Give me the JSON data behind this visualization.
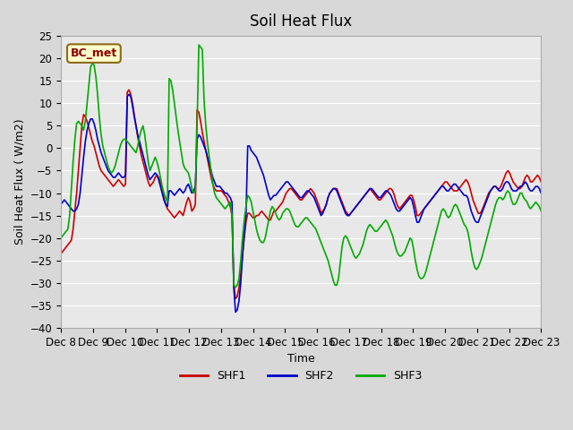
{
  "title": "Soil Heat Flux",
  "xlabel": "Time",
  "ylabel": "Soil Heat Flux ( W/m2)",
  "ylim": [
    -40,
    25
  ],
  "yticks": [
    -40,
    -35,
    -30,
    -25,
    -20,
    -15,
    -10,
    -5,
    0,
    5,
    10,
    15,
    20,
    25
  ],
  "bg_color": "#e8e8e8",
  "plot_bg_color": "#e8e8e8",
  "annotation_label": "BC_met",
  "line_colors": {
    "SHF1": "#cc0000",
    "SHF2": "#0000cc",
    "SHF3": "#00aa00"
  },
  "x_start": 8.0,
  "x_end": 23.0,
  "xtick_labels": [
    "Dec 8",
    "Dec 9",
    "Dec 10",
    "Dec 11",
    "Dec 12",
    "Dec 13",
    "Dec 14",
    "Dec 15",
    "Dec 16",
    "Dec 17",
    "Dec 18",
    "Dec 19",
    "Dec 20",
    "Dec 21",
    "Dec 22",
    "Dec 23"
  ],
  "xtick_positions": [
    8,
    9,
    10,
    11,
    12,
    13,
    14,
    15,
    16,
    17,
    18,
    19,
    20,
    21,
    22,
    23
  ],
  "SHF1": [
    -23.5,
    -23.0,
    -22.5,
    -22.0,
    -21.5,
    -21.0,
    -20.5,
    -18.0,
    -14.0,
    -10.0,
    -5.0,
    0.0,
    5.0,
    7.5,
    7.0,
    6.0,
    4.5,
    3.0,
    1.5,
    0.5,
    -1.0,
    -2.5,
    -4.0,
    -5.0,
    -5.5,
    -6.0,
    -6.5,
    -7.0,
    -7.5,
    -8.0,
    -8.5,
    -8.0,
    -7.5,
    -7.0,
    -7.5,
    -8.0,
    -8.5,
    -8.0,
    12.5,
    13.0,
    12.0,
    10.0,
    7.5,
    5.0,
    2.5,
    0.5,
    -1.5,
    -3.0,
    -4.5,
    -6.0,
    -7.5,
    -8.5,
    -8.0,
    -7.5,
    -6.5,
    -6.0,
    -6.5,
    -7.5,
    -9.0,
    -11.0,
    -12.5,
    -13.5,
    -14.0,
    -14.5,
    -15.0,
    -15.5,
    -15.0,
    -14.5,
    -14.0,
    -14.5,
    -15.0,
    -13.5,
    -12.0,
    -11.0,
    -12.0,
    -14.0,
    -13.5,
    -12.5,
    8.5,
    8.0,
    6.0,
    3.5,
    1.5,
    -0.5,
    -2.5,
    -4.5,
    -6.5,
    -8.0,
    -9.0,
    -9.5,
    -9.5,
    -9.5,
    -9.5,
    -10.0,
    -10.5,
    -11.0,
    -12.0,
    -13.0,
    -15.0,
    -30.0,
    -33.5,
    -33.0,
    -31.0,
    -28.0,
    -24.0,
    -20.0,
    -16.5,
    -14.5,
    -14.5,
    -15.0,
    -15.5,
    -15.5,
    -15.0,
    -15.0,
    -14.5,
    -14.0,
    -14.5,
    -15.0,
    -15.5,
    -16.0,
    -16.0,
    -15.0,
    -14.0,
    -14.0,
    -13.5,
    -13.0,
    -12.5,
    -12.0,
    -11.0,
    -10.0,
    -9.5,
    -9.0,
    -9.0,
    -9.5,
    -10.0,
    -10.5,
    -11.0,
    -11.5,
    -11.5,
    -11.0,
    -10.5,
    -10.0,
    -9.5,
    -9.0,
    -9.5,
    -10.0,
    -11.0,
    -12.0,
    -13.0,
    -14.5,
    -14.0,
    -13.5,
    -12.5,
    -11.0,
    -10.0,
    -9.5,
    -9.0,
    -9.0,
    -9.0,
    -10.0,
    -11.0,
    -12.0,
    -13.0,
    -14.0,
    -14.5,
    -15.0,
    -14.5,
    -14.0,
    -13.5,
    -13.0,
    -12.5,
    -12.0,
    -11.5,
    -11.0,
    -10.5,
    -10.0,
    -9.5,
    -9.0,
    -9.5,
    -10.0,
    -10.5,
    -11.0,
    -11.5,
    -11.5,
    -11.0,
    -10.5,
    -10.0,
    -9.5,
    -9.0,
    -9.0,
    -9.5,
    -10.5,
    -12.0,
    -13.0,
    -13.5,
    -13.0,
    -12.5,
    -12.0,
    -11.5,
    -11.0,
    -10.5,
    -10.5,
    -11.5,
    -13.0,
    -15.0,
    -15.0,
    -14.5,
    -14.0,
    -13.5,
    -13.0,
    -12.5,
    -12.0,
    -11.5,
    -11.0,
    -10.5,
    -10.0,
    -9.5,
    -9.0,
    -8.5,
    -8.0,
    -7.5,
    -7.5,
    -8.0,
    -8.5,
    -9.0,
    -9.5,
    -9.5,
    -9.5,
    -9.0,
    -8.5,
    -8.0,
    -7.5,
    -7.0,
    -7.5,
    -8.5,
    -10.0,
    -11.5,
    -12.5,
    -13.5,
    -14.5,
    -14.5,
    -14.0,
    -13.0,
    -12.0,
    -11.0,
    -10.0,
    -9.5,
    -9.0,
    -8.5,
    -8.5,
    -9.0,
    -9.0,
    -8.5,
    -7.5,
    -6.5,
    -5.5,
    -5.0,
    -5.5,
    -6.5,
    -7.5,
    -8.0,
    -8.5,
    -9.0,
    -9.0,
    -8.5,
    -7.5,
    -6.5,
    -6.0,
    -6.5,
    -7.5,
    -7.5,
    -7.0,
    -6.5,
    -6.0,
    -6.5,
    -7.5
  ],
  "SHF2": [
    -12.5,
    -12.0,
    -11.5,
    -12.0,
    -12.5,
    -13.0,
    -13.5,
    -14.0,
    -14.0,
    -13.5,
    -12.5,
    -10.0,
    -6.0,
    -2.0,
    1.5,
    4.0,
    5.5,
    6.5,
    6.5,
    5.5,
    4.0,
    2.0,
    0.5,
    -1.0,
    -2.0,
    -3.0,
    -4.0,
    -5.0,
    -5.5,
    -6.0,
    -6.5,
    -6.5,
    -6.0,
    -5.5,
    -6.0,
    -6.5,
    -6.5,
    -6.0,
    11.5,
    12.0,
    11.5,
    9.5,
    7.0,
    5.0,
    3.0,
    1.5,
    0.0,
    -1.5,
    -3.0,
    -4.5,
    -6.0,
    -7.0,
    -6.5,
    -6.0,
    -5.5,
    -6.0,
    -7.0,
    -8.5,
    -10.0,
    -11.5,
    -12.5,
    -13.0,
    -9.5,
    -9.5,
    -10.0,
    -10.5,
    -10.0,
    -9.5,
    -9.0,
    -9.5,
    -10.0,
    -9.5,
    -8.5,
    -8.0,
    -9.0,
    -10.0,
    -9.5,
    -8.5,
    2.0,
    3.0,
    2.5,
    1.5,
    0.5,
    -0.5,
    -2.0,
    -3.5,
    -5.0,
    -6.5,
    -7.5,
    -8.5,
    -8.5,
    -8.5,
    -9.0,
    -9.5,
    -10.0,
    -10.0,
    -10.5,
    -11.0,
    -12.0,
    -31.0,
    -36.5,
    -36.0,
    -34.0,
    -30.0,
    -24.0,
    -19.0,
    -15.0,
    0.5,
    0.5,
    -0.5,
    -1.0,
    -1.5,
    -2.0,
    -3.0,
    -4.0,
    -5.0,
    -6.0,
    -7.5,
    -9.0,
    -10.5,
    -11.5,
    -11.0,
    -10.5,
    -10.5,
    -10.0,
    -9.5,
    -9.0,
    -8.5,
    -8.0,
    -7.5,
    -7.5,
    -8.0,
    -8.5,
    -9.0,
    -9.5,
    -10.0,
    -10.5,
    -11.0,
    -11.0,
    -10.5,
    -10.0,
    -9.5,
    -9.5,
    -10.0,
    -10.5,
    -11.0,
    -12.0,
    -13.0,
    -14.0,
    -15.0,
    -14.5,
    -13.5,
    -12.5,
    -11.0,
    -10.0,
    -9.5,
    -9.0,
    -9.0,
    -9.5,
    -10.5,
    -11.5,
    -12.5,
    -13.5,
    -14.5,
    -15.0,
    -15.0,
    -14.5,
    -14.0,
    -13.5,
    -13.0,
    -12.5,
    -12.0,
    -11.5,
    -11.0,
    -10.5,
    -10.0,
    -9.5,
    -9.0,
    -9.0,
    -9.5,
    -10.0,
    -10.5,
    -11.0,
    -11.0,
    -10.5,
    -10.0,
    -9.5,
    -9.5,
    -10.0,
    -10.5,
    -11.5,
    -12.5,
    -13.5,
    -14.0,
    -14.0,
    -13.5,
    -13.0,
    -12.5,
    -12.0,
    -11.5,
    -11.0,
    -11.5,
    -13.0,
    -15.0,
    -16.5,
    -16.5,
    -15.5,
    -14.5,
    -13.5,
    -13.0,
    -12.5,
    -12.0,
    -11.5,
    -11.0,
    -10.5,
    -10.0,
    -9.5,
    -9.0,
    -8.5,
    -8.5,
    -9.0,
    -9.5,
    -9.5,
    -9.0,
    -8.5,
    -8.0,
    -8.0,
    -8.5,
    -9.0,
    -9.5,
    -10.0,
    -10.5,
    -10.5,
    -11.0,
    -12.5,
    -14.0,
    -15.0,
    -16.0,
    -16.5,
    -16.5,
    -15.5,
    -14.5,
    -13.5,
    -12.5,
    -11.5,
    -10.5,
    -9.5,
    -9.0,
    -8.5,
    -8.5,
    -9.0,
    -9.5,
    -9.5,
    -9.0,
    -8.0,
    -7.5,
    -7.5,
    -8.0,
    -9.0,
    -9.5,
    -9.5,
    -9.5,
    -9.0,
    -8.5,
    -8.5,
    -8.0,
    -7.5,
    -8.0,
    -9.0,
    -9.5,
    -9.5,
    -9.0,
    -8.5,
    -8.5,
    -9.0,
    -10.0
  ],
  "SHF3": [
    -20.0,
    -19.5,
    -19.0,
    -18.5,
    -18.0,
    -15.0,
    -9.0,
    -3.0,
    2.0,
    5.5,
    6.0,
    5.5,
    5.0,
    4.0,
    6.0,
    10.0,
    14.0,
    18.0,
    19.0,
    18.5,
    16.0,
    12.0,
    7.0,
    3.0,
    0.5,
    -1.0,
    -2.5,
    -4.0,
    -5.0,
    -5.5,
    -5.0,
    -4.0,
    -2.5,
    -1.0,
    0.5,
    1.5,
    2.0,
    2.0,
    1.5,
    1.0,
    0.5,
    0.0,
    -0.5,
    -1.0,
    0.5,
    2.5,
    4.0,
    5.0,
    3.0,
    0.0,
    -3.0,
    -5.0,
    -4.0,
    -3.0,
    -2.0,
    -3.0,
    -4.5,
    -6.5,
    -8.5,
    -10.0,
    -11.0,
    -12.0,
    15.5,
    15.0,
    13.0,
    10.0,
    7.0,
    4.0,
    1.5,
    -1.0,
    -3.5,
    -4.5,
    -5.0,
    -5.5,
    -7.0,
    -9.0,
    -10.0,
    -9.5,
    5.0,
    23.0,
    22.5,
    22.0,
    10.5,
    5.0,
    1.0,
    -2.0,
    -5.0,
    -8.0,
    -10.0,
    -11.0,
    -11.5,
    -12.0,
    -12.5,
    -13.0,
    -13.5,
    -13.0,
    -12.5,
    -12.0,
    -15.0,
    -30.5,
    -31.0,
    -30.5,
    -29.0,
    -25.0,
    -20.0,
    -16.0,
    -13.0,
    -10.5,
    -11.0,
    -12.0,
    -14.0,
    -16.0,
    -18.0,
    -19.5,
    -20.5,
    -21.0,
    -21.0,
    -20.0,
    -18.0,
    -16.0,
    -14.0,
    -13.0,
    -13.5,
    -14.5,
    -15.5,
    -16.0,
    -15.5,
    -14.5,
    -14.0,
    -13.5,
    -13.5,
    -14.0,
    -15.0,
    -16.0,
    -17.0,
    -17.5,
    -17.5,
    -17.0,
    -16.5,
    -16.0,
    -15.5,
    -15.5,
    -16.0,
    -16.5,
    -17.0,
    -17.5,
    -18.0,
    -19.0,
    -20.0,
    -21.0,
    -22.0,
    -23.0,
    -24.0,
    -25.0,
    -26.5,
    -28.0,
    -29.5,
    -30.5,
    -30.5,
    -29.0,
    -25.5,
    -22.0,
    -20.0,
    -19.5,
    -20.0,
    -21.0,
    -22.0,
    -23.0,
    -24.0,
    -24.5,
    -24.0,
    -23.5,
    -22.5,
    -21.5,
    -20.0,
    -18.5,
    -17.5,
    -17.0,
    -17.5,
    -18.0,
    -18.5,
    -18.5,
    -18.0,
    -17.5,
    -17.0,
    -16.5,
    -16.0,
    -16.5,
    -17.5,
    -18.5,
    -19.5,
    -21.0,
    -22.5,
    -23.5,
    -24.0,
    -24.0,
    -23.5,
    -23.0,
    -22.0,
    -21.0,
    -20.0,
    -20.5,
    -22.5,
    -25.0,
    -27.0,
    -28.5,
    -29.0,
    -29.0,
    -28.5,
    -27.5,
    -26.0,
    -24.5,
    -23.0,
    -21.5,
    -20.0,
    -18.5,
    -17.0,
    -15.5,
    -14.0,
    -13.5,
    -14.0,
    -15.0,
    -15.5,
    -15.0,
    -14.0,
    -13.0,
    -12.5,
    -13.0,
    -14.0,
    -15.0,
    -16.0,
    -17.0,
    -17.5,
    -18.5,
    -20.5,
    -23.0,
    -25.0,
    -26.5,
    -27.0,
    -26.5,
    -25.5,
    -24.5,
    -23.0,
    -21.5,
    -20.0,
    -18.5,
    -17.0,
    -15.5,
    -14.0,
    -12.5,
    -11.5,
    -11.0,
    -11.0,
    -11.5,
    -11.0,
    -10.0,
    -9.5,
    -10.0,
    -11.5,
    -12.5,
    -12.5,
    -12.0,
    -11.0,
    -10.0,
    -10.0,
    -11.0,
    -11.5,
    -12.0,
    -13.0,
    -13.5,
    -13.0,
    -12.5,
    -12.0,
    -12.5,
    -13.0,
    -14.0
  ]
}
